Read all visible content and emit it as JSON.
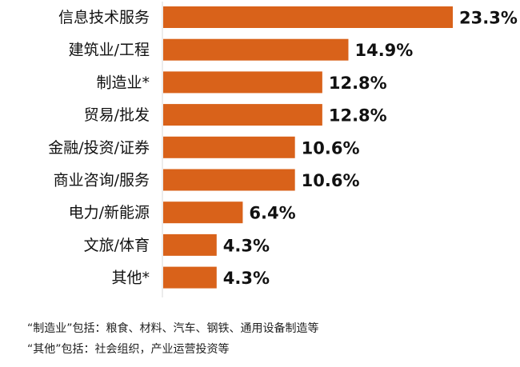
{
  "chart_data": {
    "type": "bar",
    "orientation": "horizontal",
    "categories": [
      "信息技术服务",
      "建筑业/工程",
      "制造业*",
      "贸易/批发",
      "金融/投资/证券",
      "商业咨询/服务",
      "电力/新能源",
      "文旅/体育",
      "其他*"
    ],
    "values": [
      23.3,
      14.9,
      12.8,
      12.8,
      10.6,
      10.6,
      6.4,
      4.3,
      4.3
    ],
    "value_labels": [
      "23.3%",
      "14.9%",
      "12.8%",
      "12.8%",
      "10.6%",
      "10.6%",
      "6.4%",
      "4.3%",
      "4.3%"
    ],
    "unit": "%",
    "xlim": [
      0,
      23.3
    ],
    "grid": false,
    "legend": "none",
    "title": "",
    "xlabel": "",
    "ylabel": "",
    "bar_color": "#D9621A"
  },
  "notes": [
    "“制造业”包括：粮食、材料、汽车、钢铁、通用设备制造等",
    "“其他”包括：社会组织，产业运营投资等"
  ]
}
